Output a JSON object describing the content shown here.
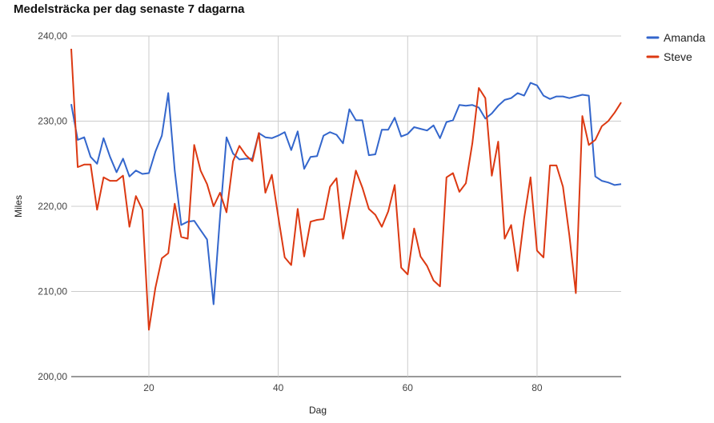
{
  "chart_data": {
    "type": "line",
    "title": "Medelsträcka per dag senaste 7 dagarna",
    "xlabel": "Dag",
    "ylabel": "Miles",
    "xlim": [
      8,
      93
    ],
    "ylim": [
      200,
      240
    ],
    "x_ticks": [
      20,
      40,
      60,
      80
    ],
    "x_tick_labels": [
      "20",
      "40",
      "60",
      "80"
    ],
    "y_ticks": [
      200,
      210,
      220,
      230,
      240
    ],
    "y_tick_labels": [
      "200,00",
      "210,00",
      "220,00",
      "230,00",
      "240,00"
    ],
    "grid": true,
    "legend_position": "top-right",
    "x": [
      8,
      9,
      10,
      11,
      12,
      13,
      14,
      15,
      16,
      17,
      18,
      19,
      20,
      21,
      22,
      23,
      24,
      25,
      26,
      27,
      28,
      29,
      30,
      31,
      32,
      33,
      34,
      35,
      36,
      37,
      38,
      39,
      40,
      41,
      42,
      43,
      44,
      45,
      46,
      47,
      48,
      49,
      50,
      51,
      52,
      53,
      54,
      55,
      56,
      57,
      58,
      59,
      60,
      61,
      62,
      63,
      64,
      65,
      66,
      67,
      68,
      69,
      70,
      71,
      72,
      73,
      74,
      75,
      76,
      77,
      78,
      79,
      80,
      81,
      82,
      83,
      84,
      85,
      86,
      87,
      88,
      89,
      90,
      91,
      92,
      93
    ],
    "series": [
      {
        "name": "Amanda",
        "color": "#3366cc",
        "values": [
          232.0,
          227.8,
          228.1,
          225.8,
          225.0,
          228.0,
          225.8,
          224.0,
          225.6,
          223.5,
          224.2,
          223.8,
          223.9,
          226.4,
          228.3,
          233.3,
          224.2,
          217.8,
          218.2,
          218.3,
          217.2,
          216.1,
          208.5,
          218.8,
          228.1,
          226.2,
          225.5,
          225.6,
          225.6,
          228.6,
          228.1,
          228.0,
          228.3,
          228.7,
          226.6,
          228.8,
          224.4,
          225.8,
          225.9,
          228.3,
          228.7,
          228.4,
          227.4,
          231.4,
          230.1,
          230.1,
          226.0,
          226.1,
          229.0,
          229.0,
          230.4,
          228.2,
          228.5,
          229.3,
          229.1,
          228.9,
          229.5,
          228.0,
          229.9,
          230.1,
          231.9,
          231.8,
          231.9,
          231.6,
          230.3,
          230.9,
          231.8,
          232.5,
          232.7,
          233.3,
          233.0,
          234.5,
          234.2,
          233.0,
          232.6,
          232.9,
          232.9,
          232.7,
          232.9,
          233.1,
          233.0,
          223.5,
          223.0,
          222.8,
          222.5,
          222.6
        ]
      },
      {
        "name": "Steve",
        "color": "#dc3912",
        "values": [
          238.5,
          224.6,
          224.9,
          224.9,
          219.6,
          223.4,
          223.0,
          223.0,
          223.6,
          217.6,
          221.2,
          219.6,
          205.5,
          210.4,
          213.9,
          214.5,
          220.3,
          216.4,
          216.2,
          227.2,
          224.2,
          222.6,
          220.0,
          221.6,
          219.3,
          225.3,
          227.1,
          226.0,
          225.3,
          228.6,
          221.6,
          223.7,
          218.8,
          214.0,
          213.1,
          219.7,
          214.1,
          218.2,
          218.4,
          218.5,
          222.3,
          223.3,
          216.2,
          220.1,
          224.2,
          222.2,
          219.7,
          219.0,
          217.6,
          219.4,
          222.5,
          212.8,
          212.0,
          217.4,
          214.1,
          213.0,
          211.3,
          210.6,
          223.4,
          223.9,
          221.7,
          222.7,
          227.4,
          233.9,
          232.7,
          223.6,
          227.6,
          216.2,
          217.8,
          212.4,
          218.6,
          223.4,
          214.8,
          214.0,
          224.8,
          224.8,
          222.3,
          216.6,
          209.8,
          230.6,
          227.2,
          227.8,
          229.4,
          230.0,
          231.0,
          232.2
        ]
      }
    ]
  }
}
